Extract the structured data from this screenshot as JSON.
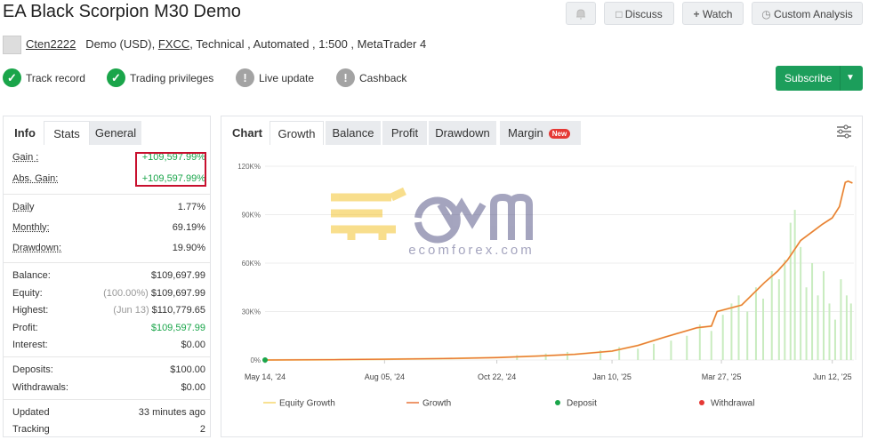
{
  "header": {
    "title": "EA Black Scorpion M30 Demo",
    "buttons": [
      "Discuss",
      "Watch",
      "Custom Analysis"
    ]
  },
  "account": {
    "user": "Cten2222",
    "type": "Demo (USD),",
    "broker": "FXCC",
    "details": ", Technical , Automated , 1:500 , MetaTrader 4"
  },
  "badges": [
    {
      "label": "Track record",
      "status": "ok"
    },
    {
      "label": "Trading privileges",
      "status": "ok"
    },
    {
      "label": "Live update",
      "status": "pending"
    },
    {
      "label": "Cashback",
      "status": "pending"
    }
  ],
  "subscribe": "Subscribe",
  "left_tabs": [
    "Info",
    "Stats",
    "General"
  ],
  "stats": [
    [
      {
        "label": "Gain :",
        "value": "+109,597.99%",
        "color": "#1aa54a"
      },
      {
        "label": "Abs. Gain:",
        "value": "+109,597.99%",
        "color": "#1aa54a"
      }
    ],
    [
      {
        "label": "Daily",
        "value": "1.77%"
      },
      {
        "label": "Monthly:",
        "value": "69.19%"
      },
      {
        "label": "Drawdown:",
        "value": "19.90%"
      }
    ],
    [
      {
        "label": "Balance:",
        "value": "$109,697.99"
      },
      {
        "label": "Equity:",
        "note": "(100.00%)",
        "value": "$109,697.99"
      },
      {
        "label": "Highest:",
        "note": "(Jun 13)",
        "value": "$110,779.65"
      },
      {
        "label": "Profit:",
        "value": "$109,597.99",
        "color": "#1aa54a"
      },
      {
        "label": "Interest:",
        "value": "$0.00"
      }
    ],
    [
      {
        "label": "Deposits:",
        "value": "$100.00"
      },
      {
        "label": "Withdrawals:",
        "value": "$0.00"
      }
    ],
    [
      {
        "label": "Updated",
        "value": "33 minutes ago"
      },
      {
        "label": "Tracking",
        "value": "2"
      }
    ]
  ],
  "chart_tabs": [
    "Chart",
    "Growth",
    "Balance",
    "Profit",
    "Drawdown",
    "Margin"
  ],
  "new_badge": "New",
  "watermark": "ecomforex.com",
  "chart_data": {
    "type": "line",
    "x": [
      "2024-05-14",
      "2024-07-01",
      "2024-08-05",
      "2024-09-15",
      "2024-10-22",
      "2024-11-20",
      "2024-12-15",
      "2025-01-10",
      "2025-01-28",
      "2025-02-15",
      "2025-03-10",
      "2025-03-20",
      "2025-03-24",
      "2025-04-10",
      "2025-04-26",
      "2025-05-05",
      "2025-05-12",
      "2025-05-21",
      "2025-05-30",
      "2025-06-05",
      "2025-06-12",
      "2025-06-17",
      "2025-06-21",
      "2025-06-23",
      "2025-06-26"
    ],
    "series": [
      {
        "name": "Equity Growth",
        "color": "#f5d76e",
        "values": [
          0,
          200,
          500,
          900,
          1500,
          2500,
          3500,
          5500,
          9000,
          14000,
          20000,
          21000,
          30000,
          34000,
          48000,
          55000,
          62000,
          74000,
          80000,
          84000,
          88000,
          95000,
          110000,
          110779,
          109598
        ]
      },
      {
        "name": "Growth",
        "color": "#e8743b",
        "values": [
          0,
          200,
          500,
          900,
          1500,
          2500,
          3500,
          5500,
          9000,
          14000,
          20000,
          21000,
          30000,
          34000,
          48000,
          55000,
          62000,
          74000,
          80000,
          84000,
          88000,
          95000,
          110000,
          110779,
          109598
        ]
      }
    ],
    "markers": [
      {
        "name": "Deposit",
        "color": "#1aa54a",
        "x": [
          "2024-05-14"
        ],
        "values": [
          0
        ]
      },
      {
        "name": "Withdrawal",
        "color": "#e53935",
        "x": [],
        "values": []
      }
    ],
    "bars": {
      "color": "#c9ecc0",
      "x": [
        "2024-11-05",
        "2024-11-25",
        "2024-12-10",
        "2025-01-02",
        "2025-01-15",
        "2025-01-28",
        "2025-02-08",
        "2025-02-20",
        "2025-03-03",
        "2025-03-12",
        "2025-03-20",
        "2025-03-28",
        "2025-04-03",
        "2025-04-08",
        "2025-04-14",
        "2025-04-20",
        "2025-04-25",
        "2025-05-01",
        "2025-05-06",
        "2025-05-10",
        "2025-05-14",
        "2025-05-17",
        "2025-05-21",
        "2025-05-25",
        "2025-05-29",
        "2025-06-02",
        "2025-06-06",
        "2025-06-10",
        "2025-06-14",
        "2025-06-18",
        "2025-06-22",
        "2025-06-25"
      ],
      "values": [
        3000,
        4000,
        5000,
        6000,
        8000,
        7000,
        10000,
        12000,
        15000,
        22000,
        18000,
        28000,
        35000,
        40000,
        30000,
        45000,
        38000,
        55000,
        50000,
        62000,
        85000,
        93000,
        70000,
        45000,
        60000,
        40000,
        55000,
        35000,
        25000,
        50000,
        40000,
        35000
      ]
    },
    "xlim": [
      "2024-05-14",
      "2025-06-27"
    ],
    "xticks": [
      {
        "value": "2024-05-14",
        "label": "May 14, '24"
      },
      {
        "value": "2024-08-05",
        "label": "Aug 05, '24"
      },
      {
        "value": "2024-10-22",
        "label": "Oct 22, '24"
      },
      {
        "value": "2025-01-10",
        "label": "Jan 10, '25"
      },
      {
        "value": "2025-03-27",
        "label": "Mar 27, '25"
      },
      {
        "value": "2025-06-12",
        "label": "Jun 12, '25"
      }
    ],
    "ylim": [
      0,
      120000
    ],
    "yticks": [
      {
        "value": 0,
        "label": "0%"
      },
      {
        "value": 30000,
        "label": "30K%"
      },
      {
        "value": 60000,
        "label": "60K%"
      },
      {
        "value": 90000,
        "label": "90K%"
      },
      {
        "value": 120000,
        "label": "120K%"
      }
    ],
    "grid": true
  }
}
